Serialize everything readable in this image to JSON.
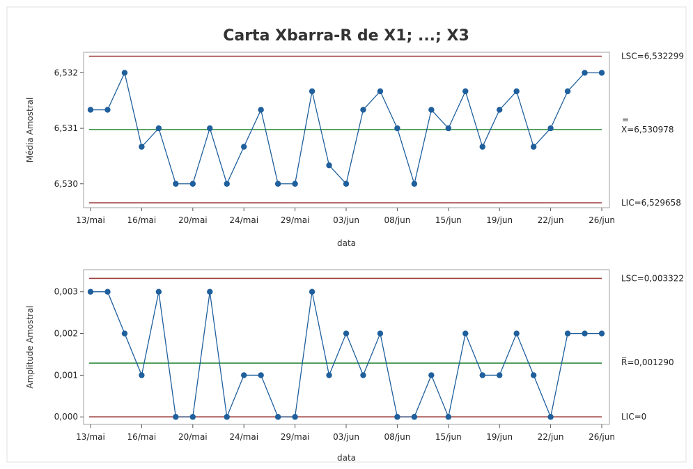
{
  "chart_title": "Carta Xbarra-R de X1; ...; X3",
  "chart_data": [
    {
      "type": "line",
      "ylabel": "Média Amostral",
      "xlabel": "data",
      "ylim": [
        6.52957,
        6.53237
      ],
      "yticks": [
        6.53,
        6.531,
        6.532
      ],
      "ytick_labels": [
        "6,530",
        "6,531",
        "6,532"
      ],
      "xtick_labels": [
        "13/mai",
        "16/mai",
        "20/mai",
        "24/mai",
        "29/mai",
        "03/jun",
        "08/jun",
        "15/jun",
        "19/jun",
        "22/jun",
        "26/jun"
      ],
      "xtick_index": [
        0,
        3,
        6,
        9,
        12,
        15,
        18,
        21,
        24,
        27,
        30
      ],
      "values": [
        6.531333,
        6.531333,
        6.532,
        6.530667,
        6.531,
        6.53,
        6.53,
        6.531,
        6.53,
        6.530667,
        6.531333,
        6.53,
        6.53,
        6.531667,
        6.530333,
        6.53,
        6.531333,
        6.531667,
        6.531,
        6.53,
        6.531333,
        6.531,
        6.531667,
        6.530667,
        6.531333,
        6.531667,
        6.530667,
        6.531,
        6.531667,
        6.532,
        6.532
      ],
      "ucl": 6.532299,
      "center": 6.530978,
      "lcl": 6.529658,
      "ucl_label": "LSC=6,532299",
      "center_bar": "=",
      "center_label": "X=6,530978",
      "lcl_label": "LIC=6,529658",
      "colors": {
        "series": "#1f5f9c",
        "limits": "#9b3b3b",
        "center": "#2e8b3e"
      }
    },
    {
      "type": "line",
      "ylabel": "Amplitude Amostral",
      "xlabel": "data",
      "ylim": [
        -0.00018,
        0.00353
      ],
      "yticks": [
        0.0,
        0.001,
        0.002,
        0.003
      ],
      "ytick_labels": [
        "0,000",
        "0,001",
        "0,002",
        "0,003"
      ],
      "xtick_labels": [
        "13/mai",
        "16/mai",
        "20/mai",
        "24/mai",
        "29/mai",
        "03/jun",
        "08/jun",
        "15/jun",
        "19/jun",
        "22/jun",
        "26/jun"
      ],
      "xtick_index": [
        0,
        3,
        6,
        9,
        12,
        15,
        18,
        21,
        24,
        27,
        30
      ],
      "values": [
        0.003,
        0.003,
        0.002,
        0.001,
        0.003,
        0,
        0,
        0.003,
        0,
        0.001,
        0.001,
        0,
        0,
        0.003,
        0.001,
        0.002,
        0.001,
        0.002,
        0,
        0,
        0.001,
        0,
        0.002,
        0.001,
        0.001,
        0.002,
        0.001,
        0,
        0.002,
        0.002,
        0.002
      ],
      "ucl": 0.003322,
      "center": 0.00129,
      "lcl": 0,
      "ucl_label": "LSC=0,003322",
      "center_bar": "_",
      "center_label": "R=0,001290",
      "lcl_label": "LIC=0",
      "colors": {
        "series": "#1f5f9c",
        "limits": "#9b3b3b",
        "center": "#2e8b3e"
      }
    }
  ]
}
